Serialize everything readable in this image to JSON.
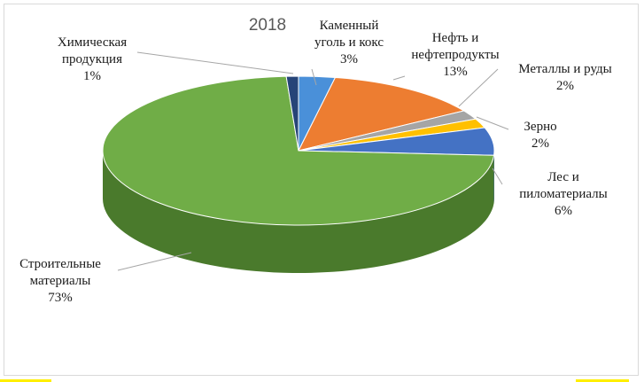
{
  "chart_data": {
    "type": "pie",
    "title": "2018",
    "slices": [
      {
        "name": "Каменный уголь и кокс",
        "value": 3,
        "label_lines": [
          "Каменный",
          "уголь и кокс"
        ],
        "pct": "3%",
        "color": "#4a90d9",
        "side": "#2f6ea8"
      },
      {
        "name": "Нефть и нефтепродукты",
        "value": 13,
        "label_lines": [
          "Нефть и",
          "нефтепродукты"
        ],
        "pct": "13%",
        "color": "#ed7d31",
        "side": "#b45b1f"
      },
      {
        "name": "Металлы и руды",
        "value": 2,
        "label_lines": [
          "Металлы и руды"
        ],
        "pct": "2%",
        "color": "#a5a5a5",
        "side": "#7a7a7a"
      },
      {
        "name": "Зерно",
        "value": 2,
        "label_lines": [
          "Зерно"
        ],
        "pct": "2%",
        "color": "#ffc000",
        "side": "#c99600"
      },
      {
        "name": "Лес и пиломатериалы",
        "value": 6,
        "label_lines": [
          "Лес и",
          "пиломатериалы"
        ],
        "pct": "6%",
        "color": "#4472c4",
        "side": "#2e5394"
      },
      {
        "name": "Строительные материалы",
        "value": 73,
        "label_lines": [
          "Строительные",
          "материалы"
        ],
        "pct": "73%",
        "color": "#70ad47",
        "side": "#4a7a2c"
      },
      {
        "name": "Химическая продукция",
        "value": 1,
        "label_lines": [
          "Химическая",
          "продукция"
        ],
        "pct": "1%",
        "color": "#264478",
        "side": "#182d50"
      }
    ],
    "legend": "none",
    "style": "3d-pie"
  }
}
